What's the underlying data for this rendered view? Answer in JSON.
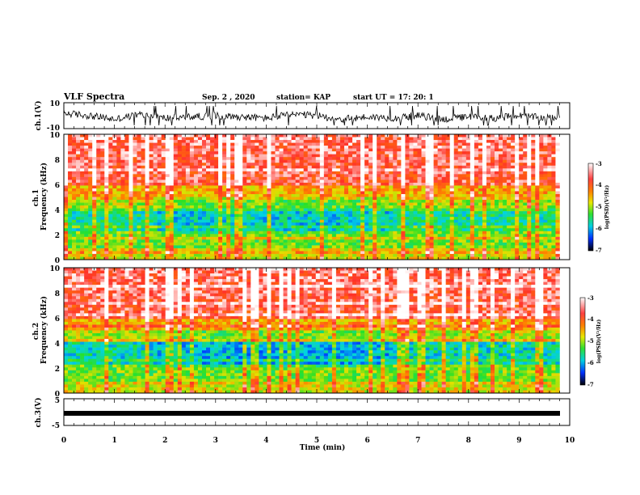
{
  "chart_data": [
    {
      "type": "line",
      "title": "VLF Spectra",
      "date": "Sep. 2 , 2020",
      "station": "station= KAP",
      "start_ut": "start UT =  17: 20: 1",
      "ylabel": "ch.1(V)",
      "ylim": [
        -10,
        10
      ],
      "y_ticks": [
        "10",
        "-10"
      ],
      "xlim": [
        0,
        10
      ],
      "series": [
        {
          "color": "#000000",
          "x": [
            0,
            0.5,
            1,
            1.5,
            2,
            2.5,
            3,
            3.5,
            4,
            4.5,
            5,
            5.5,
            6,
            6.5,
            7,
            7.5,
            8,
            8.5,
            9,
            9.5,
            9.8
          ],
          "values": [
            2,
            0,
            -3,
            1,
            -2,
            -1,
            0,
            -1,
            -2,
            1,
            0,
            -3,
            -1,
            -2,
            0,
            -3,
            -1,
            -2,
            0,
            -2,
            -1
          ]
        }
      ]
    },
    {
      "type": "heatmap",
      "ylabel": "ch.1\nFrequency (kHz)",
      "y_ticks": [
        "0",
        "2",
        "4",
        "6",
        "8",
        "10"
      ],
      "ylim": [
        0,
        10
      ],
      "xlim": [
        0,
        10
      ],
      "colorbar": {
        "label": "log(PSD)(V²/Hz)",
        "ticks": [
          "-3",
          "-4",
          "-5",
          "-6",
          "-7"
        ],
        "range": [
          -7,
          -3
        ]
      }
    },
    {
      "type": "heatmap",
      "ylabel": "ch.2\nFrequency (kHz)",
      "y_ticks": [
        "0",
        "2",
        "4",
        "6",
        "8",
        "10"
      ],
      "ylim": [
        0,
        10
      ],
      "xlim": [
        0,
        10
      ],
      "colorbar": {
        "label": "log(PSD)(V²/Hz)",
        "ticks": [
          "-3",
          "-4",
          "-5",
          "-6",
          "-7"
        ],
        "range": [
          -7,
          -3
        ]
      }
    },
    {
      "type": "line",
      "ylabel": "ch.3(V)",
      "ylim": [
        -5,
        5
      ],
      "y_ticks": [
        "5",
        "-5"
      ],
      "xlim": [
        0,
        10
      ],
      "xlabel": "Time (min)",
      "x_ticks": [
        "0",
        "1",
        "2",
        "3",
        "4",
        "5",
        "6",
        "7",
        "8",
        "9",
        "10"
      ],
      "series": [
        {
          "color": "#000000",
          "x": [
            0,
            9.8
          ],
          "values": [
            -1.5,
            -1.5
          ]
        }
      ]
    }
  ]
}
